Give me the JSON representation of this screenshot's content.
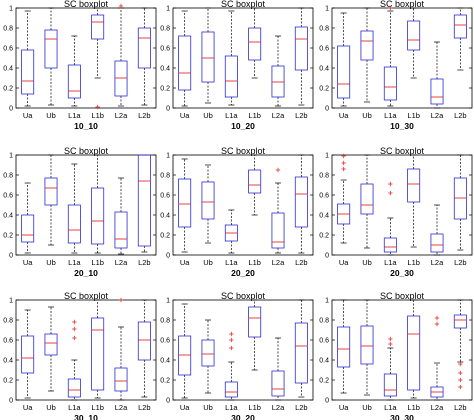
{
  "chart_data": [
    {
      "type": "boxplot",
      "title": "SC boxplot",
      "xlabel": "10_10",
      "categories": [
        "Ua",
        "Ub",
        "L1a",
        "L1b",
        "L2a",
        "L2b"
      ],
      "ylim": [
        0,
        1
      ],
      "yticks": [
        0,
        0.2,
        0.4,
        0.6,
        0.8,
        1
      ],
      "boxes": [
        {
          "whisker_low": 0.02,
          "q1": 0.14,
          "median": 0.27,
          "q3": 0.58,
          "whisker_high": 0.97,
          "outliers": []
        },
        {
          "whisker_low": 0.03,
          "q1": 0.4,
          "median": 0.69,
          "q3": 0.78,
          "whisker_high": 1.0,
          "outliers": []
        },
        {
          "whisker_low": 0.02,
          "q1": 0.1,
          "median": 0.17,
          "q3": 0.43,
          "whisker_high": 0.72,
          "outliers": []
        },
        {
          "whisker_low": 0.3,
          "q1": 0.69,
          "median": 0.86,
          "q3": 0.93,
          "whisker_high": 1.0,
          "outliers": [
            0.01
          ]
        },
        {
          "whisker_low": 0.02,
          "q1": 0.12,
          "median": 0.3,
          "q3": 0.47,
          "whisker_high": 1.0,
          "outliers": [
            1.02
          ]
        },
        {
          "whisker_low": 0.03,
          "q1": 0.4,
          "median": 0.7,
          "q3": 0.8,
          "whisker_high": 1.0,
          "outliers": []
        }
      ]
    },
    {
      "type": "boxplot",
      "title": "SC boxplot",
      "xlabel": "10_20",
      "categories": [
        "Ua",
        "Ub",
        "L1a",
        "L1b",
        "L2a",
        "L2b"
      ],
      "ylim": [
        0,
        1
      ],
      "yticks": [
        0,
        0.2,
        0.4,
        0.6,
        0.8,
        1
      ],
      "boxes": [
        {
          "whisker_low": 0.02,
          "q1": 0.18,
          "median": 0.35,
          "q3": 0.72,
          "whisker_high": 0.97,
          "outliers": []
        },
        {
          "whisker_low": 0.05,
          "q1": 0.26,
          "median": 0.5,
          "q3": 0.76,
          "whisker_high": 1.0,
          "outliers": []
        },
        {
          "whisker_low": 0.03,
          "q1": 0.11,
          "median": 0.27,
          "q3": 0.52,
          "whisker_high": 0.97,
          "outliers": []
        },
        {
          "whisker_low": 0.3,
          "q1": 0.48,
          "median": 0.66,
          "q3": 0.8,
          "whisker_high": 1.0,
          "outliers": []
        },
        {
          "whisker_low": 0.02,
          "q1": 0.11,
          "median": 0.26,
          "q3": 0.42,
          "whisker_high": 0.72,
          "outliers": []
        },
        {
          "whisker_low": 0.03,
          "q1": 0.38,
          "median": 0.69,
          "q3": 0.81,
          "whisker_high": 1.0,
          "outliers": []
        }
      ]
    },
    {
      "type": "boxplot",
      "title": "SC boxplot",
      "xlabel": "10_30",
      "categories": [
        "Ua",
        "Ub",
        "L1a",
        "L1b",
        "L2a",
        "L2b"
      ],
      "ylim": [
        0,
        1
      ],
      "yticks": [
        0,
        0.2,
        0.4,
        0.6,
        0.8,
        1
      ],
      "boxes": [
        {
          "whisker_low": 0.02,
          "q1": 0.1,
          "median": 0.24,
          "q3": 0.62,
          "whisker_high": 0.95,
          "outliers": []
        },
        {
          "whisker_low": 0.06,
          "q1": 0.48,
          "median": 0.67,
          "q3": 0.77,
          "whisker_high": 1.0,
          "outliers": []
        },
        {
          "whisker_low": 0.02,
          "q1": 0.08,
          "median": 0.21,
          "q3": 0.41,
          "whisker_high": 0.97,
          "outliers": [
            1.0
          ]
        },
        {
          "whisker_low": 0.3,
          "q1": 0.58,
          "median": 0.68,
          "q3": 0.87,
          "whisker_high": 1.0,
          "outliers": []
        },
        {
          "whisker_low": 0.0,
          "q1": 0.04,
          "median": 0.11,
          "q3": 0.29,
          "whisker_high": 0.66,
          "outliers": []
        },
        {
          "whisker_low": 0.38,
          "q1": 0.7,
          "median": 0.83,
          "q3": 0.93,
          "whisker_high": 1.0,
          "outliers": []
        }
      ]
    },
    {
      "type": "boxplot",
      "title": "SC boxplot",
      "xlabel": "20_10",
      "categories": [
        "Ua",
        "Ub",
        "L1a",
        "L1b",
        "L2a",
        "L2b"
      ],
      "ylim": [
        0,
        1
      ],
      "yticks": [
        0,
        0.2,
        0.4,
        0.6,
        0.8,
        1
      ],
      "boxes": [
        {
          "whisker_low": 0.02,
          "q1": 0.13,
          "median": 0.2,
          "q3": 0.4,
          "whisker_high": 0.72,
          "outliers": []
        },
        {
          "whisker_low": 0.1,
          "q1": 0.5,
          "median": 0.67,
          "q3": 0.77,
          "whisker_high": 1.0,
          "outliers": []
        },
        {
          "whisker_low": 0.02,
          "q1": 0.12,
          "median": 0.25,
          "q3": 0.5,
          "whisker_high": 0.91,
          "outliers": []
        },
        {
          "whisker_low": 0.02,
          "q1": 0.11,
          "median": 0.34,
          "q3": 0.67,
          "whisker_high": 1.0,
          "outliers": []
        },
        {
          "whisker_low": 0.01,
          "q1": 0.07,
          "median": 0.16,
          "q3": 0.43,
          "whisker_high": 0.77,
          "outliers": []
        },
        {
          "whisker_low": 0.03,
          "q1": 0.09,
          "median": 0.74,
          "q3": 1.0,
          "whisker_high": 1.0,
          "outliers": []
        }
      ]
    },
    {
      "type": "boxplot",
      "title": "SC boxplot",
      "xlabel": "20_20",
      "categories": [
        "Ua",
        "Ub",
        "L1a",
        "L1b",
        "L2a",
        "L2b"
      ],
      "ylim": [
        0,
        1
      ],
      "yticks": [
        0,
        0.2,
        0.4,
        0.6,
        0.8,
        1
      ],
      "boxes": [
        {
          "whisker_low": 0.03,
          "q1": 0.28,
          "median": 0.51,
          "q3": 0.76,
          "whisker_high": 0.96,
          "outliers": []
        },
        {
          "whisker_low": 0.12,
          "q1": 0.36,
          "median": 0.53,
          "q3": 0.73,
          "whisker_high": 0.9,
          "outliers": []
        },
        {
          "whisker_low": 0.02,
          "q1": 0.14,
          "median": 0.22,
          "q3": 0.3,
          "whisker_high": 0.45,
          "outliers": []
        },
        {
          "whisker_low": 0.4,
          "q1": 0.62,
          "median": 0.7,
          "q3": 0.85,
          "whisker_high": 1.0,
          "outliers": []
        },
        {
          "whisker_low": 0.02,
          "q1": 0.07,
          "median": 0.13,
          "q3": 0.42,
          "whisker_high": 0.72,
          "outliers": [
            0.85
          ]
        },
        {
          "whisker_low": 0.02,
          "q1": 0.28,
          "median": 0.61,
          "q3": 0.78,
          "whisker_high": 1.0,
          "outliers": []
        }
      ]
    },
    {
      "type": "boxplot",
      "title": "SC boxplot",
      "xlabel": "20_30",
      "categories": [
        "Ua",
        "Ub",
        "L1a",
        "L1b",
        "L2a",
        "L2b"
      ],
      "ylim": [
        0,
        1
      ],
      "yticks": [
        0,
        0.2,
        0.4,
        0.6,
        0.8,
        1
      ],
      "boxes": [
        {
          "whisker_low": 0.12,
          "q1": 0.31,
          "median": 0.41,
          "q3": 0.51,
          "whisker_high": 0.75,
          "outliers": [
            0.86,
            0.92,
            0.99
          ]
        },
        {
          "whisker_low": 0.07,
          "q1": 0.41,
          "median": 0.5,
          "q3": 0.71,
          "whisker_high": 1.0,
          "outliers": []
        },
        {
          "whisker_low": 0.0,
          "q1": 0.03,
          "median": 0.08,
          "q3": 0.17,
          "whisker_high": 0.37,
          "outliers": [
            0.62,
            0.71
          ]
        },
        {
          "whisker_low": 0.08,
          "q1": 0.53,
          "median": 0.71,
          "q3": 0.86,
          "whisker_high": 1.0,
          "outliers": []
        },
        {
          "whisker_low": 0.0,
          "q1": 0.03,
          "median": 0.1,
          "q3": 0.21,
          "whisker_high": 0.5,
          "outliers": []
        },
        {
          "whisker_low": 0.05,
          "q1": 0.36,
          "median": 0.57,
          "q3": 0.77,
          "whisker_high": 1.0,
          "outliers": []
        }
      ]
    },
    {
      "type": "boxplot",
      "title": "SC boxplot",
      "xlabel": "30_10",
      "categories": [
        "Ua",
        "Ub",
        "L1a",
        "L1b",
        "L2a",
        "L2b"
      ],
      "ylim": [
        0,
        1
      ],
      "yticks": [
        0,
        0.2,
        0.4,
        0.6,
        0.8,
        1
      ],
      "boxes": [
        {
          "whisker_low": 0.02,
          "q1": 0.27,
          "median": 0.42,
          "q3": 0.64,
          "whisker_high": 0.9,
          "outliers": []
        },
        {
          "whisker_low": 0.09,
          "q1": 0.45,
          "median": 0.57,
          "q3": 0.66,
          "whisker_high": 0.93,
          "outliers": []
        },
        {
          "whisker_low": 0.0,
          "q1": 0.03,
          "median": 0.1,
          "q3": 0.21,
          "whisker_high": 0.4,
          "outliers": [
            0.62,
            0.71,
            0.78
          ]
        },
        {
          "whisker_low": 0.02,
          "q1": 0.1,
          "median": 0.7,
          "q3": 0.82,
          "whisker_high": 1.0,
          "outliers": []
        },
        {
          "whisker_low": 0.0,
          "q1": 0.09,
          "median": 0.19,
          "q3": 0.32,
          "whisker_high": 0.73,
          "outliers": [
            1.0
          ]
        },
        {
          "whisker_low": 0.03,
          "q1": 0.4,
          "median": 0.6,
          "q3": 0.78,
          "whisker_high": 1.0,
          "outliers": []
        }
      ]
    },
    {
      "type": "boxplot",
      "title": "SC boxplot",
      "xlabel": "30_20",
      "categories": [
        "Ua",
        "Ub",
        "L1a",
        "L1b",
        "L2a",
        "L2b"
      ],
      "ylim": [
        0,
        1
      ],
      "yticks": [
        0,
        0.2,
        0.4,
        0.6,
        0.8,
        1
      ],
      "boxes": [
        {
          "whisker_low": 0.02,
          "q1": 0.25,
          "median": 0.45,
          "q3": 0.64,
          "whisker_high": 0.96,
          "outliers": []
        },
        {
          "whisker_low": 0.07,
          "q1": 0.34,
          "median": 0.46,
          "q3": 0.6,
          "whisker_high": 0.8,
          "outliers": []
        },
        {
          "whisker_low": 0.0,
          "q1": 0.03,
          "median": 0.08,
          "q3": 0.18,
          "whisker_high": 0.38,
          "outliers": [
            0.52,
            0.6,
            0.66
          ]
        },
        {
          "whisker_low": 0.3,
          "q1": 0.63,
          "median": 0.82,
          "q3": 0.93,
          "whisker_high": 1.0,
          "outliers": []
        },
        {
          "whisker_low": 0.0,
          "q1": 0.04,
          "median": 0.11,
          "q3": 0.29,
          "whisker_high": 0.62,
          "outliers": []
        },
        {
          "whisker_low": 0.03,
          "q1": 0.17,
          "median": 0.54,
          "q3": 0.77,
          "whisker_high": 1.0,
          "outliers": []
        }
      ]
    },
    {
      "type": "boxplot",
      "title": "SC boxplot",
      "xlabel": "30_30",
      "categories": [
        "Ua",
        "Ub",
        "L1a",
        "L1b",
        "L2a",
        "L2b"
      ],
      "ylim": [
        0,
        1
      ],
      "yticks": [
        0,
        0.2,
        0.4,
        0.6,
        0.8,
        1
      ],
      "boxes": [
        {
          "whisker_low": 0.07,
          "q1": 0.33,
          "median": 0.51,
          "q3": 0.73,
          "whisker_high": 1.0,
          "outliers": []
        },
        {
          "whisker_low": 0.05,
          "q1": 0.36,
          "median": 0.54,
          "q3": 0.74,
          "whisker_high": 1.0,
          "outliers": []
        },
        {
          "whisker_low": 0.0,
          "q1": 0.04,
          "median": 0.1,
          "q3": 0.26,
          "whisker_high": 0.52,
          "outliers": [
            0.56,
            0.61
          ]
        },
        {
          "whisker_low": 0.02,
          "q1": 0.1,
          "median": 0.66,
          "q3": 0.84,
          "whisker_high": 1.0,
          "outliers": []
        },
        {
          "whisker_low": 0.0,
          "q1": 0.03,
          "median": 0.08,
          "q3": 0.13,
          "whisker_high": 0.37,
          "outliers": [
            0.76,
            0.82
          ]
        },
        {
          "whisker_low": 0.38,
          "q1": 0.72,
          "median": 0.8,
          "q3": 0.85,
          "whisker_high": 1.0,
          "outliers": [
            0.13,
            0.2,
            0.27,
            0.36
          ]
        }
      ]
    }
  ],
  "colors": {
    "box": "#2b2bd6",
    "median": "#e0302c",
    "outlier": "#e0302c",
    "whisker": "#000000",
    "axis": "#000000"
  }
}
